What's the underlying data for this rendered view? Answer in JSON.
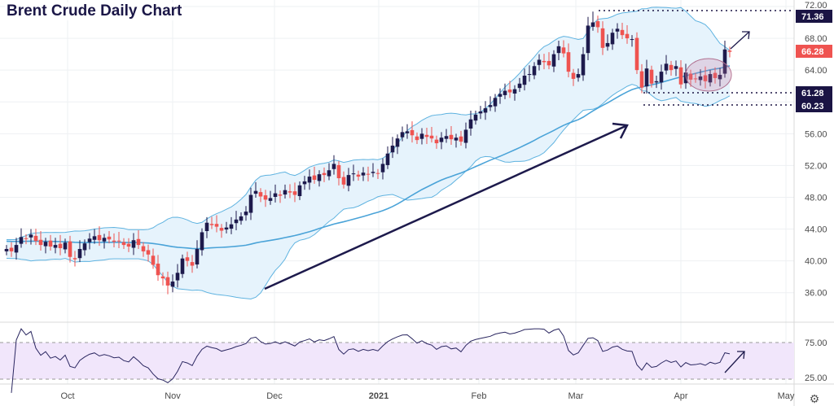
{
  "title": "Brent Crude Daily Chart",
  "chart_data": {
    "type": "candlestick",
    "title": "Brent Crude Daily Chart",
    "ylim": [
      34,
      72
    ],
    "y_ticks": [
      "72.00",
      "68.00",
      "64.00",
      "56.00",
      "52.00",
      "48.00",
      "44.00",
      "40.00",
      "36.00"
    ],
    "x_ticks": [
      "Oct",
      "Nov",
      "Dec",
      "2021",
      "Feb",
      "Mar",
      "Apr",
      "May"
    ],
    "closes": [
      41.5,
      41.2,
      42.0,
      43.0,
      42.8,
      43.3,
      42.5,
      42.0,
      42.4,
      41.8,
      42.0,
      41.6,
      42.3,
      40.5,
      40.2,
      41.5,
      42.2,
      42.8,
      43.1,
      42.6,
      42.9,
      42.7,
      42.4,
      42.5,
      42.0,
      41.8,
      42.6,
      42.0,
      41.2,
      40.8,
      39.5,
      38.2,
      37.8,
      36.9,
      37.4,
      38.5,
      40.3,
      40.0,
      39.4,
      41.5,
      43.6,
      44.8,
      44.5,
      44.3,
      43.8,
      44.2,
      44.6,
      45.2,
      45.6,
      46.2,
      48.3,
      48.8,
      48.1,
      47.7,
      47.9,
      48.5,
      48.2,
      48.9,
      48.6,
      48.3,
      49.5,
      50.0,
      50.6,
      50.2,
      50.9,
      50.8,
      51.4,
      52.2,
      50.4,
      49.6,
      50.8,
      51.0,
      50.6,
      51.1,
      50.9,
      51.2,
      51.0,
      52.2,
      53.5,
      54.5,
      55.4,
      56.2,
      56.3,
      55.8,
      55.2,
      56.0,
      55.6,
      55.4,
      54.8,
      55.5,
      55.7,
      55.3,
      55.5,
      55.0,
      56.5,
      57.8,
      58.4,
      58.8,
      59.2,
      59.6,
      60.5,
      61.0,
      61.4,
      61.2,
      61.6,
      62.3,
      63.3,
      63.5,
      64.5,
      65.3,
      65.0,
      64.6,
      66.0,
      67.0,
      66.1,
      63.8,
      62.9,
      63.5,
      66.0,
      69.6,
      70.0,
      69.4,
      66.8,
      67.4,
      68.7,
      69.2,
      68.4,
      68.0,
      67.9,
      64.0,
      61.8,
      64.2,
      62.3,
      62.6,
      63.8,
      64.8,
      64.0,
      64.5,
      62.2,
      63.7,
      62.8,
      62.9,
      63.2,
      62.6,
      63.5,
      63.0,
      63.4,
      66.6,
      66.3
    ],
    "indicators": [
      "Bollinger Bands (20,2)",
      "RSI (14)"
    ],
    "price_labels": [
      {
        "value": "71.36",
        "kind": "level"
      },
      {
        "value": "66.28",
        "kind": "last"
      },
      {
        "value": "61.28",
        "kind": "level"
      },
      {
        "value": "60.23",
        "kind": "level"
      }
    ],
    "rsi": {
      "ticks": [
        "75.00",
        "25.00"
      ],
      "band": [
        30,
        70
      ]
    }
  },
  "colors": {
    "up": "#1d1a4c",
    "down": "#ef5350",
    "band": "#5fb3e0",
    "fill": "#e6f3fc",
    "label": "#1a1444",
    "rsi": "#2a2660",
    "rsi_fill": "#f1e6fb"
  }
}
